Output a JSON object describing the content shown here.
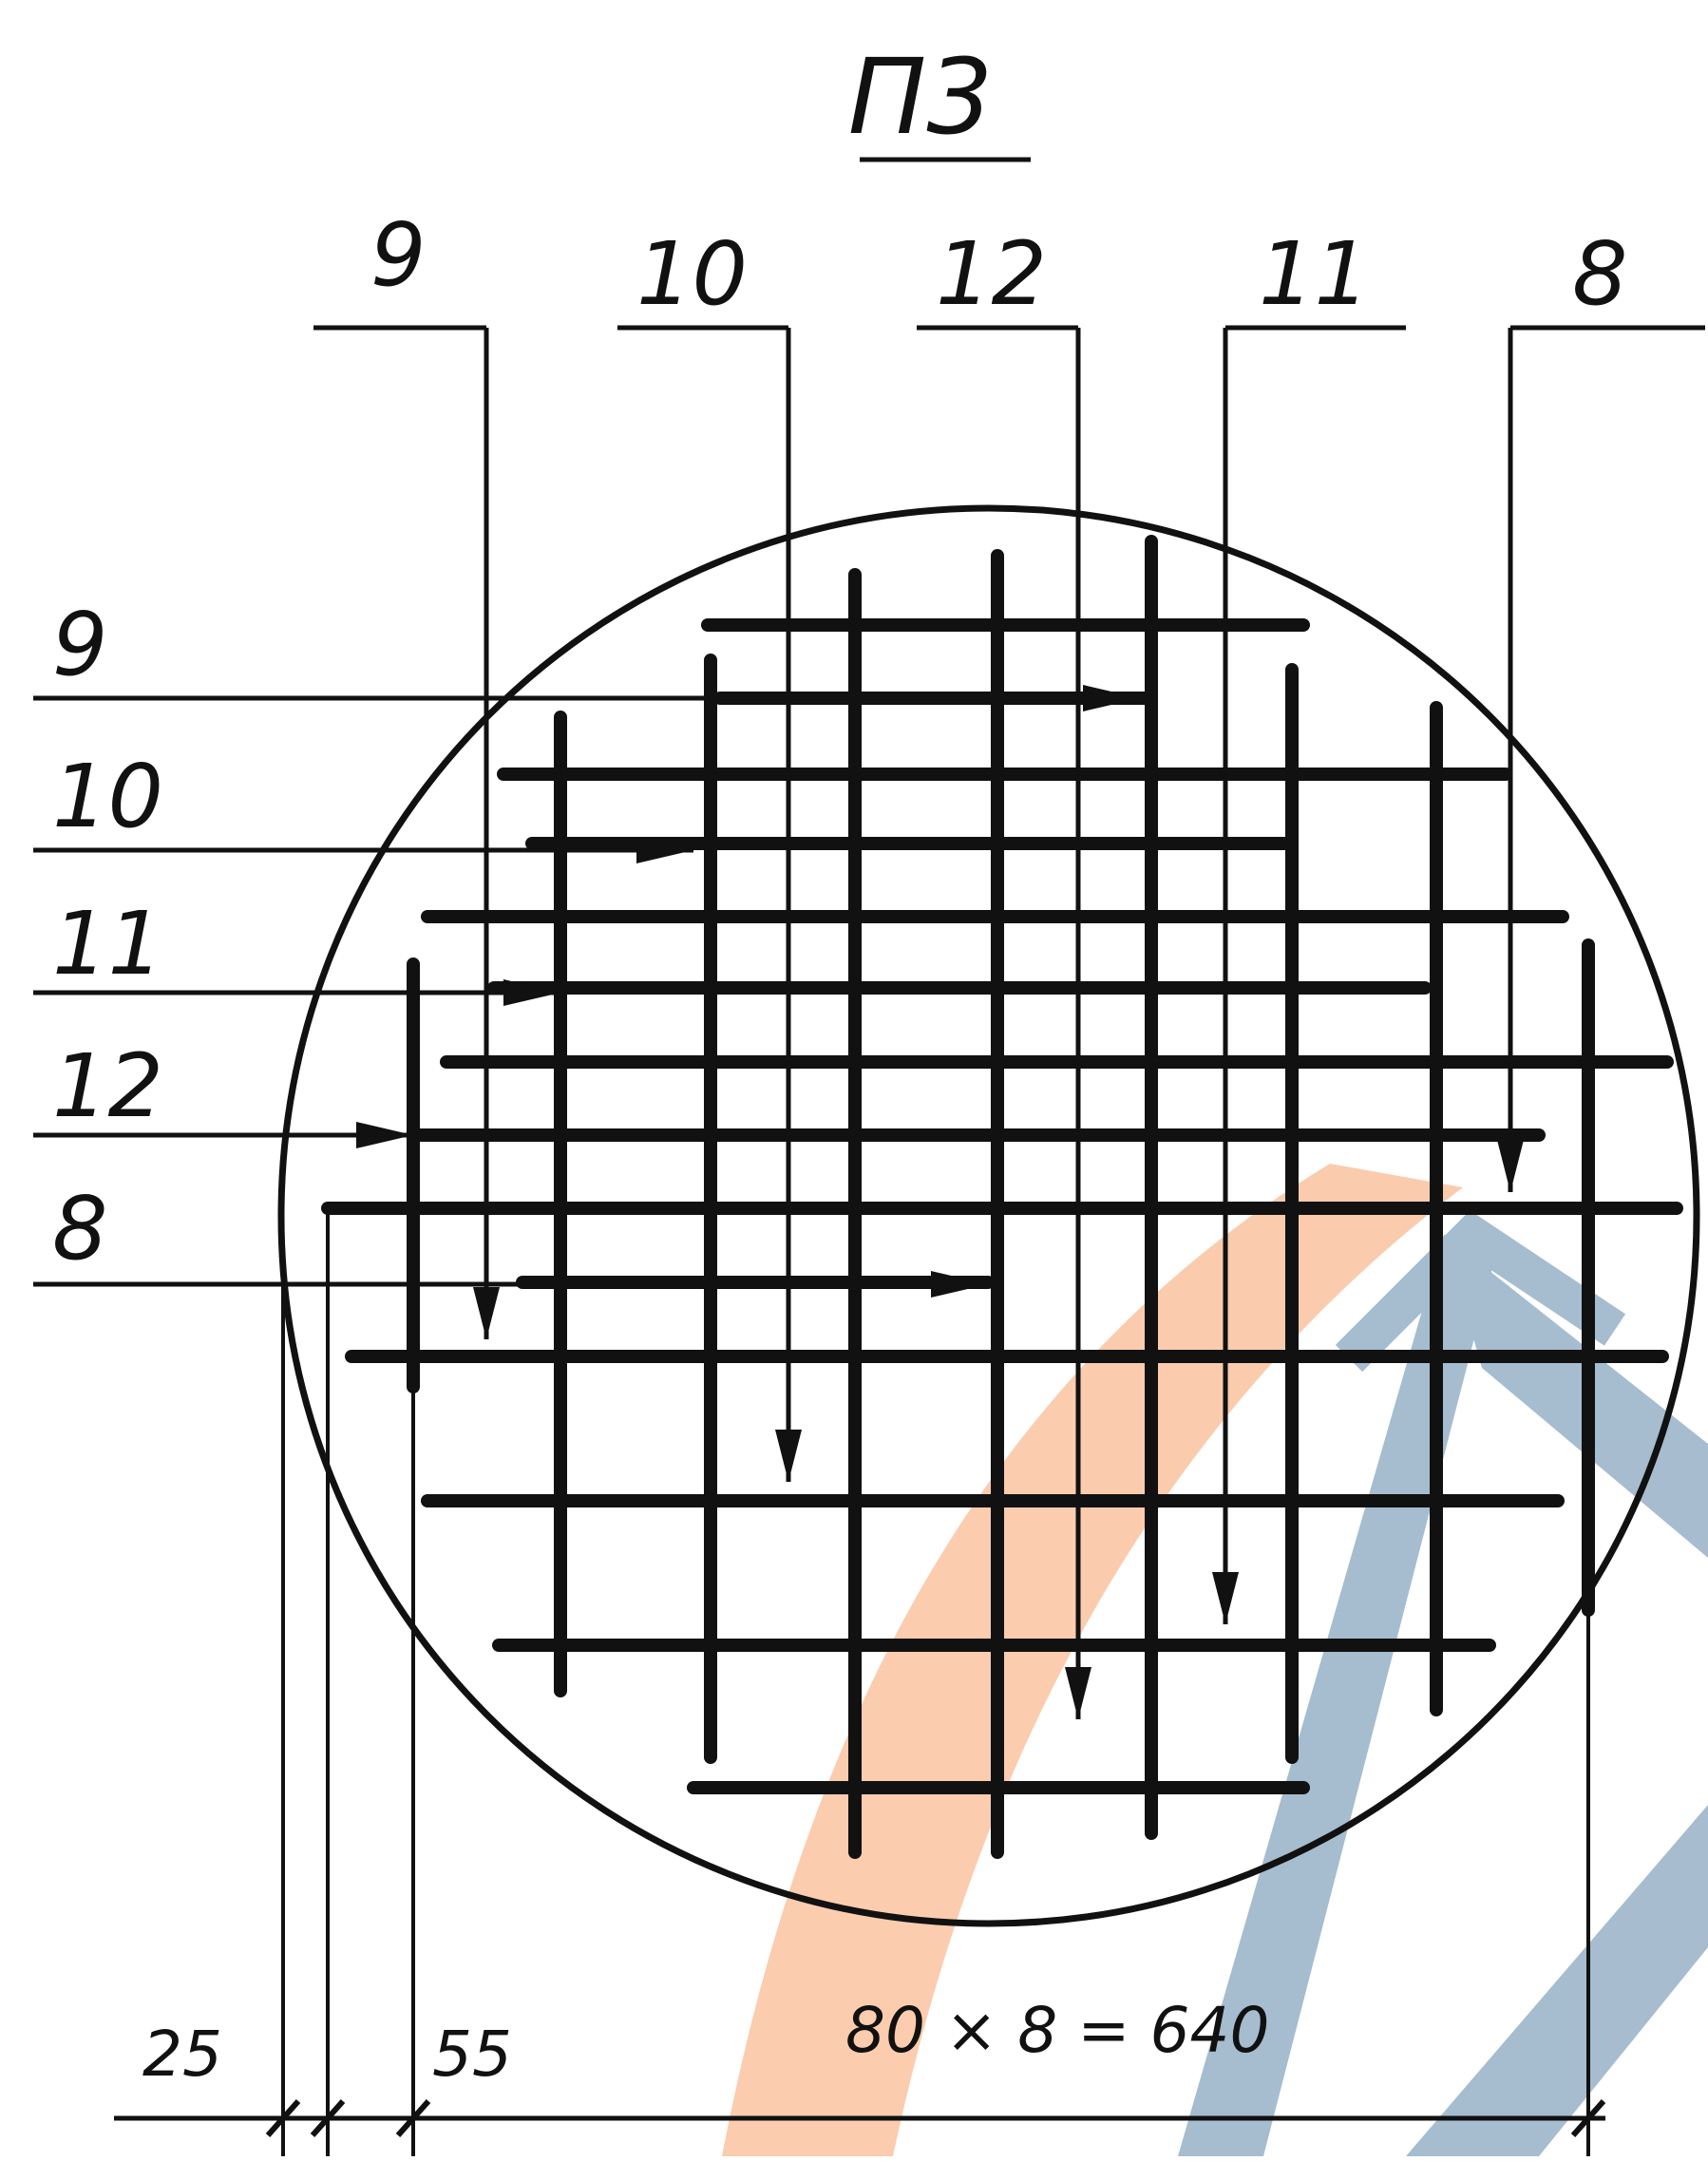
{
  "title": "П3",
  "top_labels": [
    "9",
    "10",
    "12",
    "11",
    "8"
  ],
  "left_labels": [
    "9",
    "10",
    "11",
    "12",
    "8"
  ],
  "dimensions": {
    "left": "25",
    "middle": "55",
    "right": "80 × 8 = 640"
  },
  "colors": {
    "ink": "#111111",
    "watermark_orange": "#f7a36b",
    "watermark_blue": "#5f86a8"
  }
}
